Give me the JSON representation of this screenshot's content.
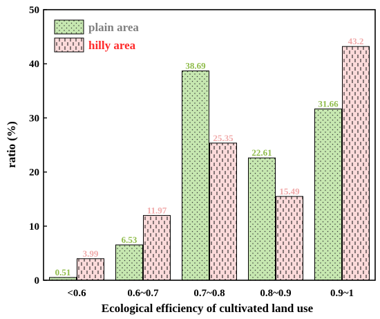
{
  "chart_data": {
    "type": "bar",
    "title": "",
    "xlabel": "Ecological efficiency of cultivated land use",
    "ylabel": "ratio (%)",
    "ylim": [
      0,
      50
    ],
    "yticks": [
      "0",
      "10",
      "20",
      "30",
      "40",
      "50"
    ],
    "categories": [
      "<0.6",
      "0.6~0.7",
      "0.7~0.8",
      "0.8~0.9",
      "0.9~1"
    ],
    "series": [
      {
        "name": "plain area",
        "values": [
          0.51,
          6.53,
          38.69,
          22.61,
          31.66
        ],
        "labels": [
          "0.51",
          "6.53",
          "38.69",
          "22.61",
          "31.66"
        ],
        "color": "#c6e7b0",
        "label_color": "#8fbc4a",
        "pattern": "dots"
      },
      {
        "name": "hilly area",
        "values": [
          3.99,
          11.97,
          25.35,
          15.49,
          43.2
        ],
        "labels": [
          "3.99",
          "11.97",
          "25.35",
          "15.49",
          "43.2"
        ],
        "color": "#fbdada",
        "label_color": "#f0aaaa",
        "pattern": "dashes"
      }
    ],
    "legend": {
      "placement": "top-left",
      "text_colors": [
        "#7f7f7f",
        "#ff2a2a"
      ]
    },
    "grid": false
  }
}
